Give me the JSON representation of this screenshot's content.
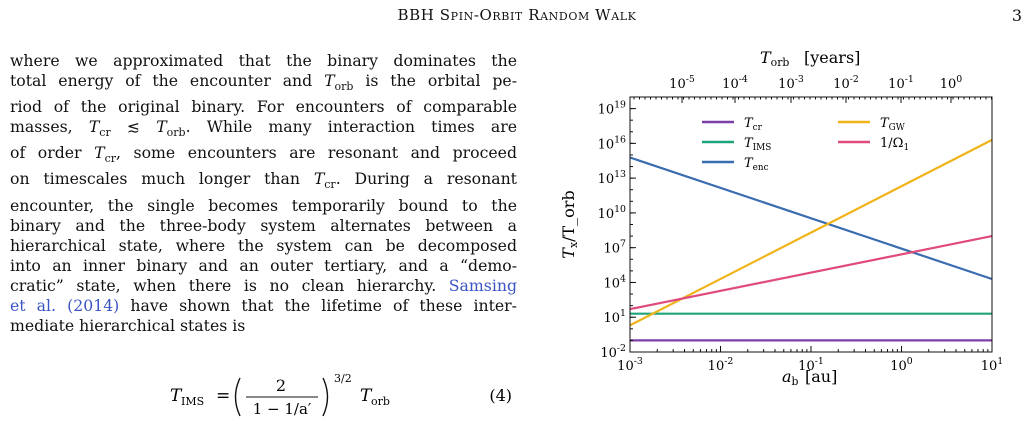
{
  "header": {
    "title": "BBH Spin-Orbit Random Walk",
    "page_number": "3"
  },
  "body_text": {
    "lines": [
      "where we approximated that the binary dominates the",
      "total energy of the encounter and T_orb is the orbital pe-",
      "riod of the original binary. For encounters of comparable",
      "masses, T_cr ≲ T_orb. While many interaction times are",
      "of order T_cr, some encounters are resonant and proceed",
      "on timescales much longer than T_cr. During a resonant",
      "encounter, the single becomes temporarily bound to the",
      "binary and the three-body system alternates between a",
      "hierarchical state, where the system can be decomposed",
      "into an inner binary and an outer tertiary, and a “demo-",
      "cratic” state, when there is no clean hierarchy.",
      "et al. (2014) have shown that the lifetime of these inter-",
      "mediate hierarchical states is"
    ],
    "citation_part1": "Samsing",
    "citation_part2": "et al. (2014)"
  },
  "equation": {
    "lhs": "T",
    "lhs_sub": "IMS",
    "numerator": "2",
    "denominator": "1 − 1/a′",
    "exponent": "3/2",
    "rhs": "T",
    "rhs_sub": "orb",
    "number": "(4)"
  },
  "chart_data": {
    "type": "line",
    "xscale": "log",
    "yscale": "log",
    "xlim": [
      0.001,
      10
    ],
    "ylim": [
      0.01,
      1e+20
    ],
    "xlabel": "a_b [au]",
    "ylabel": "T_x/T_orb",
    "top_xlabel": "T_orb [years]",
    "xticks": [
      "10^-3",
      "10^-2",
      "10^-1",
      "10^0",
      "10^1"
    ],
    "yticks": [
      "10^-2",
      "10^1",
      "10^4",
      "10^7",
      "10^10",
      "10^13",
      "10^16",
      "10^19"
    ],
    "top_xticks": [
      "10^-5",
      "10^-4",
      "10^-3",
      "10^-2",
      "10^-1",
      "10^0"
    ],
    "legend_placement": "top",
    "series": [
      {
        "name": "T_cr",
        "color": "#7b3fa8",
        "x": [
          0.001,
          10
        ],
        "y": [
          0.1,
          0.1
        ]
      },
      {
        "name": "T_IMS",
        "color": "#1fa37a",
        "x": [
          0.001,
          10
        ],
        "y": [
          20,
          20
        ]
      },
      {
        "name": "T_enc",
        "color": "#3a6cb0",
        "x": [
          0.001,
          10
        ],
        "y": [
          600000000000000.0,
          20000.0
        ]
      },
      {
        "name": "T_GW",
        "color": "#f0b41a",
        "x": [
          0.001,
          10
        ],
        "y": [
          2,
          2e+16
        ]
      },
      {
        "name": "1/Ω_1",
        "color": "#e04b7c",
        "x": [
          0.001,
          10
        ],
        "y": [
          50,
          100000000.0
        ]
      }
    ]
  }
}
